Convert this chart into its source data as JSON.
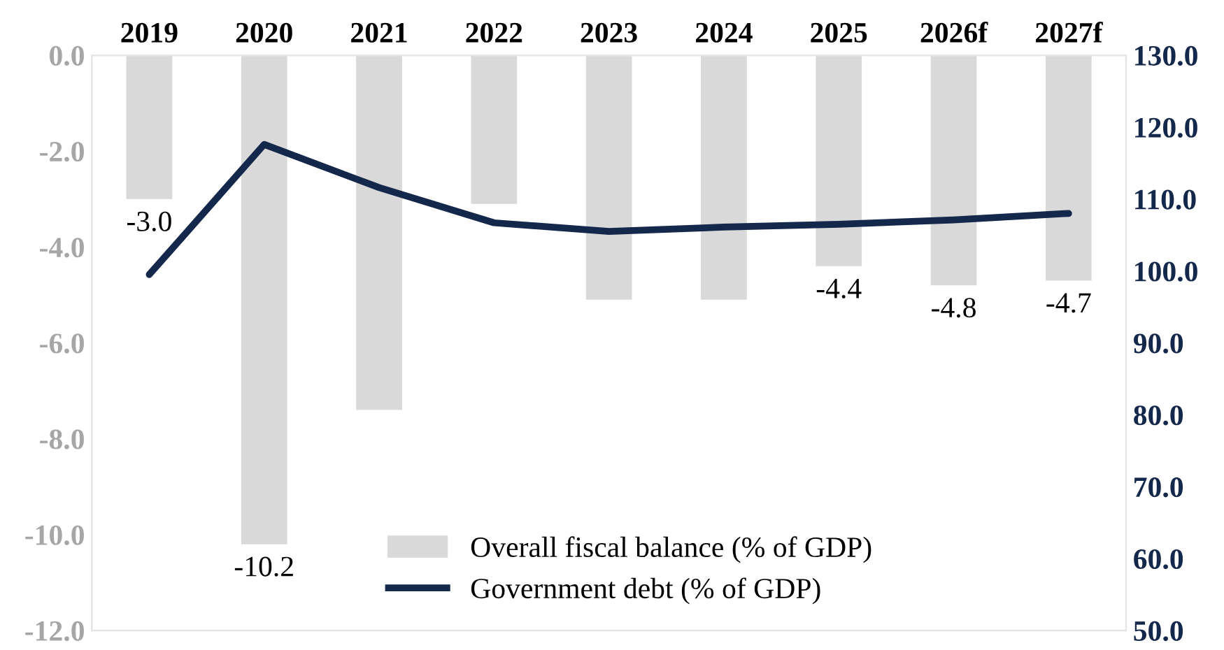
{
  "chart_data": {
    "type": "bar",
    "categories": [
      "2019",
      "2020",
      "2021",
      "2022",
      "2023",
      "2024",
      "2025",
      "2026f",
      "2027f"
    ],
    "series": [
      {
        "name": "Overall fiscal balance (% of GDP)",
        "color": "#d9d9d9",
        "values": [
          -3.0,
          -10.2,
          -7.4,
          -3.1,
          -5.1,
          -5.1,
          -4.4,
          -4.8,
          -4.7
        ],
        "value_labels": [
          "-3.0",
          "-10.2",
          null,
          null,
          null,
          null,
          "-4.4",
          "-4.8",
          "-4.7"
        ]
      },
      {
        "name": "Government debt (% of GDP)",
        "type": "line",
        "axis": "y2",
        "color": "#14284b",
        "values": [
          99.5,
          117.6,
          111.6,
          106.7,
          105.5,
          106.1,
          106.5,
          107.1,
          108.0
        ]
      }
    ],
    "ylim": [
      -12,
      0
    ],
    "yticks": [
      {
        "value": -12,
        "label": "-12.0"
      },
      {
        "value": -10,
        "label": "-10.0"
      },
      {
        "value": -8,
        "label": "-8.0"
      },
      {
        "value": -6,
        "label": "-6.0"
      },
      {
        "value": -4,
        "label": "-4.0"
      },
      {
        "value": -2,
        "label": "-2.0"
      },
      {
        "value": 0,
        "label": "0.0"
      }
    ],
    "y2lim": [
      50,
      130
    ],
    "y2ticks": [
      {
        "value": 50,
        "label": "50.0"
      },
      {
        "value": 60,
        "label": "60.0"
      },
      {
        "value": 70,
        "label": "70.0"
      },
      {
        "value": 80,
        "label": "80.0"
      },
      {
        "value": 90,
        "label": "90.0"
      },
      {
        "value": 100,
        "label": "100.0"
      },
      {
        "value": 110,
        "label": "110.0"
      },
      {
        "value": 120,
        "label": "120.0"
      },
      {
        "value": 130,
        "label": "130.0"
      }
    ],
    "legend": "bottom right",
    "grid": false,
    "marker": "none",
    "line_style": "solid"
  }
}
